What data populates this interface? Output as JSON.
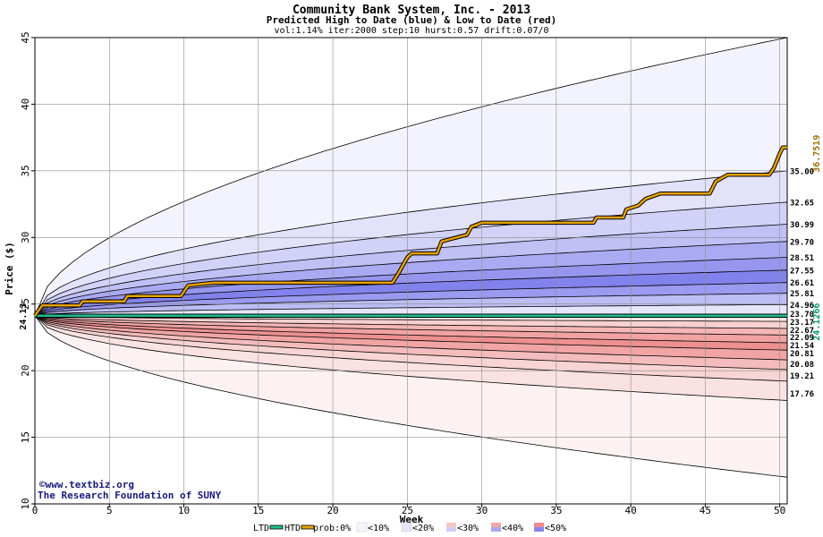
{
  "chart_data": {
    "type": "area",
    "title": "Community Bank System, Inc. - 2013",
    "subtitle": "Predicted High to Date (blue) &  Low to Date (red)",
    "params": "vol:1.14% iter:2000 step:10 hurst:0.57 drift:0.07/0",
    "xlabel": "Week",
    "ylabel": "Price ($)",
    "xlim": [
      0,
      50.5
    ],
    "ylim": [
      10,
      45
    ],
    "x_ticks": [
      0,
      5,
      10,
      15,
      20,
      25,
      30,
      35,
      40,
      45,
      50
    ],
    "y_ticks": [
      10,
      15,
      20,
      25,
      30,
      35,
      40,
      45
    ],
    "start_price": 24.13,
    "start_price_label": "24.13",
    "upper_percentile_labels": [
      "35.00",
      "32.65",
      "30.99",
      "29.70",
      "28.51",
      "27.55",
      "26.61",
      "25.81",
      "24.96"
    ],
    "upper_percentile_values": [
      35.0,
      32.65,
      30.99,
      29.7,
      28.51,
      27.55,
      26.61,
      25.81,
      24.96
    ],
    "lower_percentile_labels": [
      "23.70",
      "23.17",
      "22.67",
      "22.09",
      "21.54",
      "20.81",
      "20.08",
      "19.21",
      "17.76"
    ],
    "lower_percentile_values": [
      23.7,
      23.17,
      22.67,
      22.09,
      21.54,
      20.81,
      20.08,
      19.21,
      17.76
    ],
    "envelope_max_end": 45.0,
    "envelope_min_end": 12.0,
    "htd_series": {
      "name": "HTD",
      "end_label": "36.7519",
      "points": [
        [
          0,
          24.13
        ],
        [
          0.5,
          24.9
        ],
        [
          3,
          24.9
        ],
        [
          3.2,
          25.2
        ],
        [
          6,
          25.2
        ],
        [
          6.2,
          25.6
        ],
        [
          9.8,
          25.6
        ],
        [
          10.3,
          26.4
        ],
        [
          12,
          26.6
        ],
        [
          24,
          26.6
        ],
        [
          24.4,
          27.3
        ],
        [
          25,
          28.5
        ],
        [
          25.3,
          28.8
        ],
        [
          27,
          28.8
        ],
        [
          27.3,
          29.7
        ],
        [
          29,
          30.2
        ],
        [
          29.3,
          30.8
        ],
        [
          30,
          31.1
        ],
        [
          37.5,
          31.1
        ],
        [
          37.7,
          31.5
        ],
        [
          39.5,
          31.5
        ],
        [
          39.7,
          32.1
        ],
        [
          40.5,
          32.4
        ],
        [
          41,
          32.9
        ],
        [
          42,
          33.3
        ],
        [
          43.5,
          33.3
        ],
        [
          45.3,
          33.3
        ],
        [
          45.7,
          34.2
        ],
        [
          46.5,
          34.7
        ],
        [
          49.3,
          34.7
        ],
        [
          49.6,
          35.2
        ],
        [
          50,
          36.3
        ],
        [
          50.2,
          36.75
        ],
        [
          50.5,
          36.75
        ]
      ]
    },
    "ltd_series": {
      "name": "LTD",
      "end_label": "24.1266",
      "points": [
        [
          0,
          24.13
        ],
        [
          12.5,
          24.13
        ],
        [
          13,
          24.1266
        ],
        [
          50.5,
          24.1266
        ]
      ]
    },
    "legend": [
      "LTD",
      "HTD",
      "prob:0%",
      "<10%",
      "<20%",
      "<30%",
      "<40%",
      "<50%"
    ],
    "legend_placement": "bottom",
    "grid": true,
    "colors": {
      "band_upper": [
        "#f1f1fd",
        "#e1e1fb",
        "#cdcdf8",
        "#b3b3f3",
        "#9898ef",
        "#7f7feb"
      ],
      "band_lower": [
        "#fdf1f1",
        "#fbe0e0",
        "#f8cccc",
        "#f3b3b3",
        "#ef9898",
        "#eb7f7f"
      ],
      "htd": "#e8a200",
      "ltd": "#1fbf8f",
      "htd_label": "#a07000",
      "ltd_label": "#0a9a6a",
      "grid": "#8c8c8c",
      "frame": "#000000"
    }
  },
  "watermark": {
    "line1": "©www.textbiz.org",
    "line2": "The Research Foundation of SUNY"
  }
}
